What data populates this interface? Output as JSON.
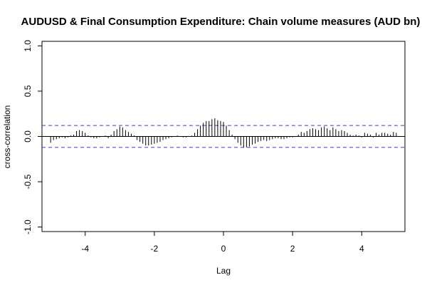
{
  "chart_data": {
    "type": "bar",
    "title": "AUDUSD & Final Consumption Expenditure: Chain volume measures (AUD bn)",
    "xlabel": "Lag",
    "ylabel": "cross-correlation",
    "xlim": [
      -5.25,
      5.25
    ],
    "ylim": [
      -1.05,
      1.05
    ],
    "xticks": [
      "-4",
      "-2",
      "0",
      "2",
      "4"
    ],
    "yticks": [
      "1.0",
      "0.5",
      "0.0",
      "-0.5",
      "-1.0"
    ],
    "confidence_band": 0.121,
    "grid": false,
    "lags": [
      -5.0,
      -4.917,
      -4.833,
      -4.75,
      -4.667,
      -4.583,
      -4.5,
      -4.417,
      -4.333,
      -4.25,
      -4.167,
      -4.083,
      -4.0,
      -3.917,
      -3.833,
      -3.75,
      -3.667,
      -3.583,
      -3.5,
      -3.417,
      -3.333,
      -3.25,
      -3.167,
      -3.083,
      -3.0,
      -2.917,
      -2.833,
      -2.75,
      -2.667,
      -2.583,
      -2.5,
      -2.417,
      -2.333,
      -2.25,
      -2.167,
      -2.083,
      -2.0,
      -1.917,
      -1.833,
      -1.75,
      -1.667,
      -1.583,
      -1.5,
      -1.417,
      -1.333,
      -1.25,
      -1.167,
      -1.083,
      -1.0,
      -0.917,
      -0.833,
      -0.75,
      -0.667,
      -0.583,
      -0.5,
      -0.417,
      -0.333,
      -0.25,
      -0.167,
      -0.083,
      0.0,
      0.083,
      0.167,
      0.25,
      0.333,
      0.417,
      0.5,
      0.583,
      0.667,
      0.75,
      0.833,
      0.917,
      1.0,
      1.083,
      1.167,
      1.25,
      1.333,
      1.417,
      1.5,
      1.583,
      1.667,
      1.75,
      1.833,
      1.917,
      2.0,
      2.083,
      2.167,
      2.25,
      2.333,
      2.417,
      2.5,
      2.583,
      2.667,
      2.75,
      2.833,
      2.917,
      3.0,
      3.083,
      3.167,
      3.25,
      3.333,
      3.417,
      3.5,
      3.583,
      3.667,
      3.75,
      3.833,
      3.917,
      4.0,
      4.083,
      4.167,
      4.25,
      4.333,
      4.417,
      4.5,
      4.583,
      4.667,
      4.75,
      4.833,
      4.917,
      5.0
    ],
    "values": [
      -0.07,
      -0.04,
      -0.03,
      -0.02,
      -0.01,
      -0.02,
      -0.01,
      0.01,
      0.02,
      0.06,
      0.07,
      0.06,
      0.04,
      0.01,
      -0.01,
      -0.02,
      -0.02,
      -0.01,
      0.0,
      0.01,
      -0.02,
      0.02,
      0.06,
      0.08,
      0.11,
      0.1,
      0.07,
      0.05,
      0.03,
      0.01,
      -0.04,
      -0.06,
      -0.08,
      -0.1,
      -0.1,
      -0.09,
      -0.08,
      -0.07,
      -0.06,
      -0.04,
      -0.03,
      -0.02,
      -0.01,
      0.0,
      0.01,
      0.0,
      -0.01,
      -0.01,
      0.0,
      0.01,
      0.04,
      0.08,
      0.12,
      0.15,
      0.17,
      0.17,
      0.19,
      0.2,
      0.18,
      0.17,
      0.16,
      0.12,
      0.07,
      0.02,
      -0.03,
      -0.07,
      -0.1,
      -0.12,
      -0.12,
      -0.11,
      -0.09,
      -0.08,
      -0.06,
      -0.05,
      -0.04,
      -0.05,
      -0.04,
      -0.03,
      -0.02,
      -0.02,
      -0.03,
      -0.03,
      -0.02,
      -0.01,
      -0.01,
      0.0,
      0.02,
      0.05,
      0.04,
      0.06,
      0.08,
      0.09,
      0.08,
      0.07,
      0.1,
      0.11,
      0.09,
      0.07,
      0.1,
      0.08,
      0.06,
      0.07,
      0.06,
      0.04,
      0.02,
      0.01,
      0.02,
      0.01,
      -0.01,
      0.04,
      0.03,
      0.02,
      -0.01,
      0.04,
      0.02,
      0.04,
      0.04,
      0.03,
      0.02,
      0.05,
      0.04
    ]
  }
}
